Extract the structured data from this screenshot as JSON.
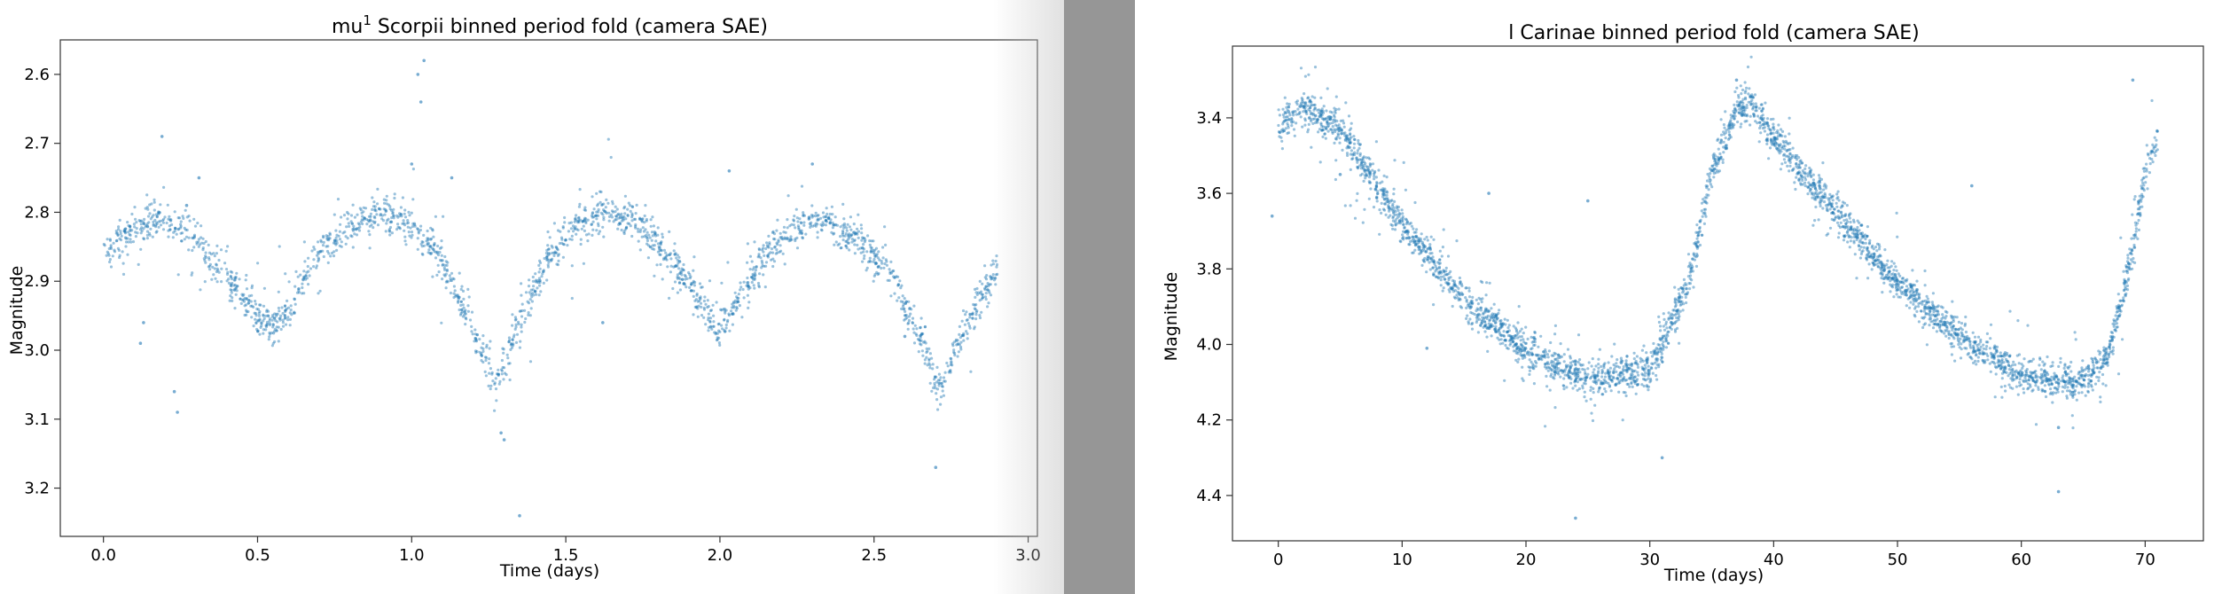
{
  "chart_data": [
    {
      "type": "scatter",
      "title": "mu",
      "title_superscript": "1",
      "title_rest": " Scorpii binned period fold (camera SAE)",
      "xlabel": "Time (days)",
      "ylabel": "Magnitude",
      "xlim": [
        -0.14,
        3.03
      ],
      "ylim": [
        3.27,
        2.55
      ],
      "y_inverted": true,
      "xticks": [
        0.0,
        0.5,
        1.0,
        1.5,
        2.0,
        2.5,
        3.0
      ],
      "xtick_labels": [
        "0.0",
        "0.5",
        "1.0",
        "1.5",
        "2.0",
        "2.5",
        "3.0"
      ],
      "yticks": [
        2.6,
        2.7,
        2.8,
        2.9,
        3.0,
        3.1,
        3.2
      ],
      "ytick_labels": [
        "2.6",
        "2.7",
        "2.8",
        "2.9",
        "3.0",
        "3.1",
        "3.2"
      ],
      "grid": false,
      "marker_color": "#1f77b4",
      "series": [
        {
          "curve_x": [
            0.0,
            0.1,
            0.2,
            0.3,
            0.4,
            0.5,
            0.55,
            0.6,
            0.7,
            0.8,
            0.9,
            1.0,
            1.1,
            1.2,
            1.27,
            1.35,
            1.45,
            1.55,
            1.65,
            1.75,
            1.85,
            1.95,
            2.0,
            2.05,
            2.15,
            2.25,
            2.35,
            2.45,
            2.55,
            2.65,
            2.71,
            2.8,
            2.9
          ],
          "curve_y": [
            2.87,
            2.82,
            2.81,
            2.84,
            2.89,
            2.95,
            2.97,
            2.94,
            2.86,
            2.82,
            2.8,
            2.82,
            2.87,
            2.97,
            3.05,
            2.96,
            2.86,
            2.81,
            2.8,
            2.82,
            2.87,
            2.94,
            2.97,
            2.94,
            2.86,
            2.82,
            2.81,
            2.84,
            2.89,
            2.98,
            3.06,
            2.96,
            2.88
          ],
          "scatter_sd": 0.013,
          "outliers": [
            [
              0.23,
              3.06
            ],
            [
              0.24,
              3.09
            ],
            [
              0.19,
              2.69
            ],
            [
              0.27,
              2.79
            ],
            [
              1.02,
              2.6
            ],
            [
              1.04,
              2.58
            ],
            [
              1.03,
              2.64
            ],
            [
              1.0,
              2.73
            ],
            [
              1.13,
              2.75
            ],
            [
              1.35,
              3.24
            ],
            [
              2.03,
              2.74
            ],
            [
              2.3,
              2.73
            ],
            [
              2.6,
              2.98
            ],
            [
              2.7,
              3.17
            ],
            [
              0.13,
              2.96
            ],
            [
              0.12,
              2.99
            ],
            [
              1.29,
              3.12
            ],
            [
              1.3,
              3.13
            ],
            [
              0.31,
              2.75
            ],
            [
              1.62,
              2.96
            ]
          ]
        }
      ]
    },
    {
      "type": "scatter",
      "title": "l Carinae binned period fold (camera SAE)",
      "xlabel": "Time (days)",
      "ylabel": "Magnitude",
      "xlim": [
        -3.7,
        74.7
      ],
      "ylim": [
        4.52,
        3.21
      ],
      "y_inverted": true,
      "xticks": [
        0,
        10,
        20,
        30,
        40,
        50,
        60,
        70
      ],
      "xtick_labels": [
        "0",
        "10",
        "20",
        "30",
        "40",
        "50",
        "60",
        "70"
      ],
      "yticks": [
        3.4,
        3.6,
        3.8,
        4.0,
        4.2,
        4.4
      ],
      "ytick_labels": [
        "3.4",
        "3.6",
        "3.8",
        "4.0",
        "4.2",
        "4.4"
      ],
      "grid": false,
      "marker_color": "#1f77b4",
      "series": [
        {
          "curve_x": [
            0,
            2,
            5,
            10,
            15,
            20,
            25,
            30,
            33,
            35,
            37,
            38,
            40,
            45,
            50,
            55,
            60,
            65,
            67,
            69,
            70,
            71
          ],
          "curve_y": [
            3.42,
            3.37,
            3.43,
            3.68,
            3.88,
            4.02,
            4.09,
            4.07,
            3.85,
            3.55,
            3.38,
            3.37,
            3.45,
            3.65,
            3.84,
            3.98,
            4.08,
            4.1,
            4.03,
            3.75,
            3.55,
            3.45
          ],
          "scatter_sd": 0.022,
          "outliers": [
            [
              -0.5,
              3.66
            ],
            [
              24,
              4.46
            ],
            [
              25,
              3.62
            ],
            [
              31,
              4.3
            ],
            [
              12,
              4.01
            ],
            [
              56,
              3.58
            ],
            [
              63,
              4.39
            ],
            [
              63,
              4.22
            ],
            [
              69,
              3.3
            ],
            [
              37,
              3.3
            ],
            [
              17,
              3.6
            ],
            [
              5,
              3.55
            ]
          ]
        }
      ]
    }
  ]
}
